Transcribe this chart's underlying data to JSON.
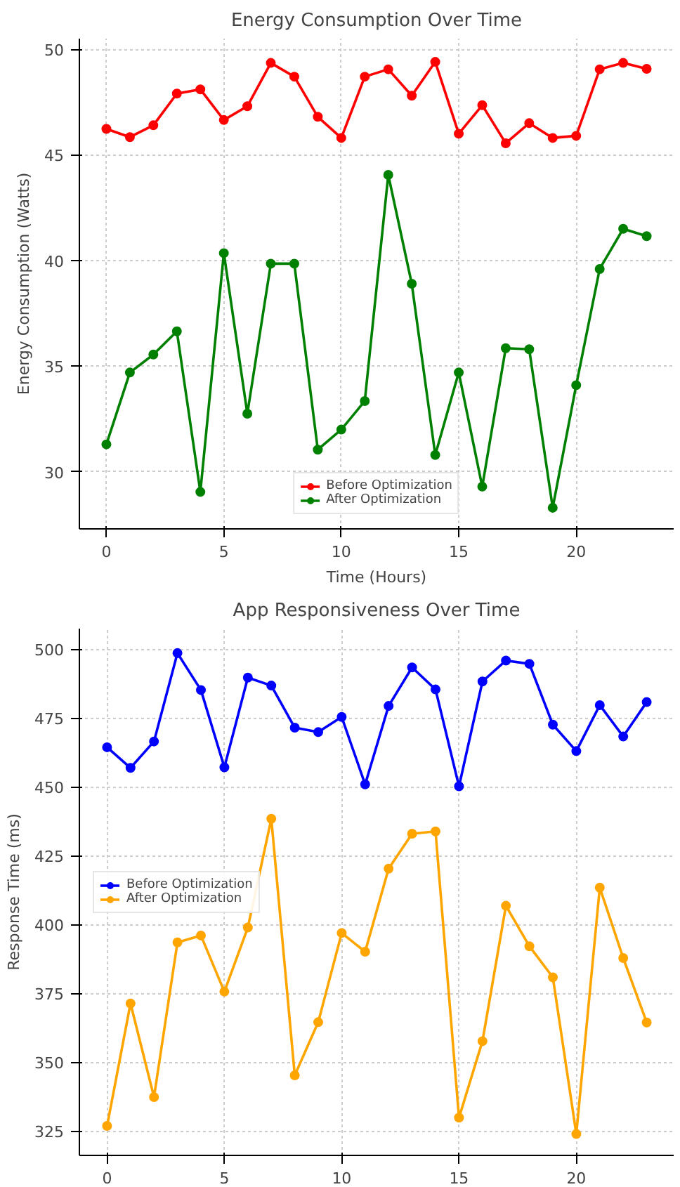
{
  "chart_data": [
    {
      "type": "line",
      "title": "Energy Consumption Over Time",
      "xlabel": "Time (Hours)",
      "ylabel": "Energy Consumption (Watts)",
      "x": [
        0,
        1,
        2,
        3,
        4,
        5,
        6,
        7,
        8,
        9,
        10,
        11,
        12,
        13,
        14,
        15,
        16,
        17,
        18,
        19,
        20,
        21,
        22,
        23
      ],
      "series": [
        {
          "name": "Before Optimization",
          "color": "#ff0000",
          "values": [
            46.23,
            45.84,
            46.4,
            47.9,
            48.1,
            46.65,
            47.3,
            49.35,
            48.7,
            46.8,
            45.8,
            48.7,
            49.05,
            47.8,
            49.4,
            46.0,
            47.35,
            45.55,
            46.5,
            45.8,
            45.9,
            49.05,
            49.35,
            49.07
          ]
        },
        {
          "name": "After Optimization",
          "color": "#008000",
          "values": [
            31.3,
            34.7,
            35.55,
            36.65,
            29.05,
            40.35,
            32.75,
            39.85,
            39.85,
            31.05,
            32.0,
            33.35,
            44.05,
            38.9,
            30.8,
            34.7,
            29.3,
            35.85,
            35.8,
            28.3,
            34.1,
            39.6,
            41.5,
            41.15
          ]
        }
      ],
      "xlim": [
        -1.15,
        24.15
      ],
      "xticks": [
        0,
        5,
        10,
        15,
        20
      ],
      "ylim": [
        27.3,
        50.5
      ],
      "yticks": [
        30,
        35,
        40,
        45,
        50
      ],
      "grid": true,
      "legend": "bottom",
      "marker": "circle",
      "line_style": "solid"
    },
    {
      "type": "line",
      "title": "App Responsiveness Over Time",
      "ylabel": "Response Time (ms)",
      "x": [
        0,
        1,
        2,
        3,
        4,
        5,
        6,
        7,
        8,
        9,
        10,
        11,
        12,
        13,
        14,
        15,
        16,
        17,
        18,
        19,
        20,
        21,
        22,
        23
      ],
      "series": [
        {
          "name": "Before Optimization",
          "color": "#0000ff",
          "values": [
            464.4,
            456.9,
            466.5,
            498.6,
            485.2,
            457.1,
            489.7,
            486.8,
            471.5,
            469.9,
            475.4,
            450.9,
            479.4,
            493.4,
            485.4,
            450.2,
            488.3,
            495.9,
            494.7,
            472.6,
            463.0,
            479.7,
            468.3,
            480.8
          ]
        },
        {
          "name": "After Optimization",
          "color": "#ffa500",
          "values": [
            326.8,
            371.3,
            337.3,
            393.5,
            396.0,
            375.6,
            398.9,
            438.4,
            345.2,
            364.5,
            396.9,
            390.1,
            420.3,
            433.0,
            433.8,
            329.8,
            357.6,
            406.8,
            392.1,
            380.8,
            323.9,
            413.4,
            387.8,
            364.4
          ]
        }
      ],
      "xlim": [
        -1.18,
        24.15
      ],
      "xticks": [
        0,
        5,
        10,
        15,
        20
      ],
      "ylim": [
        316.1,
        507.5
      ],
      "yticks": [
        325,
        350,
        375,
        400,
        425,
        450,
        475,
        500
      ],
      "grid": true,
      "legend": "left",
      "marker": "circle",
      "line_style": "solid"
    }
  ]
}
